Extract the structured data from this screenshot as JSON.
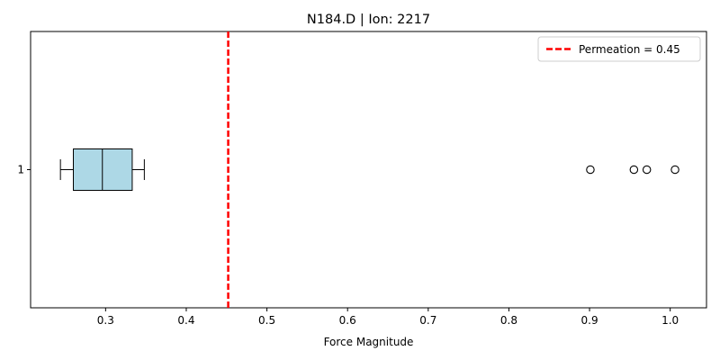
{
  "chart_data": {
    "type": "boxplot",
    "title": "N184.D | Ion: 2217",
    "xlabel": "Force Magnitude",
    "ylabel": "",
    "orientation": "horizontal",
    "xlim": [
      0.207,
      1.045
    ],
    "xticks": [
      0.3,
      0.4,
      0.5,
      0.6,
      0.7,
      0.8,
      0.9,
      1.0
    ],
    "xtick_labels": [
      "0.3",
      "0.4",
      "0.5",
      "0.6",
      "0.7",
      "0.8",
      "0.9",
      "1.0"
    ],
    "categories": [
      "1"
    ],
    "boxes": [
      {
        "category": "1",
        "whisker_low": 0.244,
        "q1": 0.26,
        "median": 0.296,
        "q3": 0.333,
        "whisker_high": 0.348,
        "outliers": [
          0.901,
          0.955,
          0.971,
          1.006
        ],
        "fill_color": "#add8e6"
      }
    ],
    "reference_line": {
      "value": 0.452,
      "label": "Permeation = 0.45",
      "color": "#ff0000",
      "style": "dashed"
    },
    "legend_position": "top-right",
    "grid": false
  }
}
